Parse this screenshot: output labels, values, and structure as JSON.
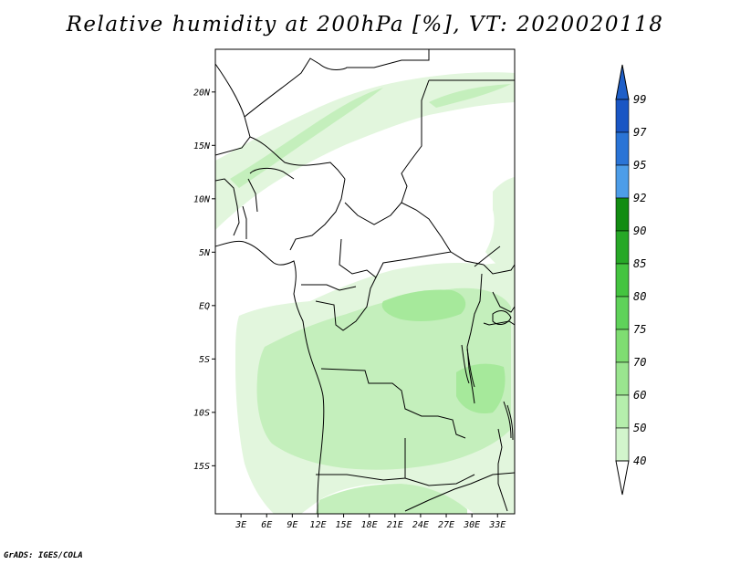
{
  "title": "Relative humidity at 200hPa [%], VT: 2020020118",
  "credit": "GrADS: IGES/COLA",
  "map": {
    "lon_range": [
      0,
      35
    ],
    "lat_range": [
      -19.5,
      24
    ],
    "lon_ticks": [
      {
        "value": 3,
        "label": "3E"
      },
      {
        "value": 6,
        "label": "6E"
      },
      {
        "value": 9,
        "label": "9E"
      },
      {
        "value": 12,
        "label": "12E"
      },
      {
        "value": 15,
        "label": "15E"
      },
      {
        "value": 18,
        "label": "18E"
      },
      {
        "value": 21,
        "label": "21E"
      },
      {
        "value": 24,
        "label": "24E"
      },
      {
        "value": 27,
        "label": "27E"
      },
      {
        "value": 30,
        "label": "30E"
      },
      {
        "value": 33,
        "label": "33E"
      }
    ],
    "lat_ticks": [
      {
        "value": 20,
        "label": "20N"
      },
      {
        "value": 15,
        "label": "15N"
      },
      {
        "value": 10,
        "label": "10N"
      },
      {
        "value": 5,
        "label": "5N"
      },
      {
        "value": 0,
        "label": "EQ"
      },
      {
        "value": -5,
        "label": "5S"
      },
      {
        "value": -10,
        "label": "10S"
      },
      {
        "value": -15,
        "label": "15S"
      }
    ]
  },
  "colorbar": {
    "levels": [
      "40",
      "50",
      "60",
      "70",
      "75",
      "80",
      "85",
      "90",
      "92",
      "95",
      "97",
      "99"
    ],
    "colors": [
      "#eefaee",
      "#d2f5cc",
      "#b5eeac",
      "#9ae58f",
      "#7fdd72",
      "#5fd25a",
      "#44c440",
      "#27a827",
      "#128c12",
      "#4d9de8",
      "#2a74d6",
      "#1a56c4"
    ],
    "lower_color": "#ffffff",
    "upper_color": "#1f5fc8"
  }
}
